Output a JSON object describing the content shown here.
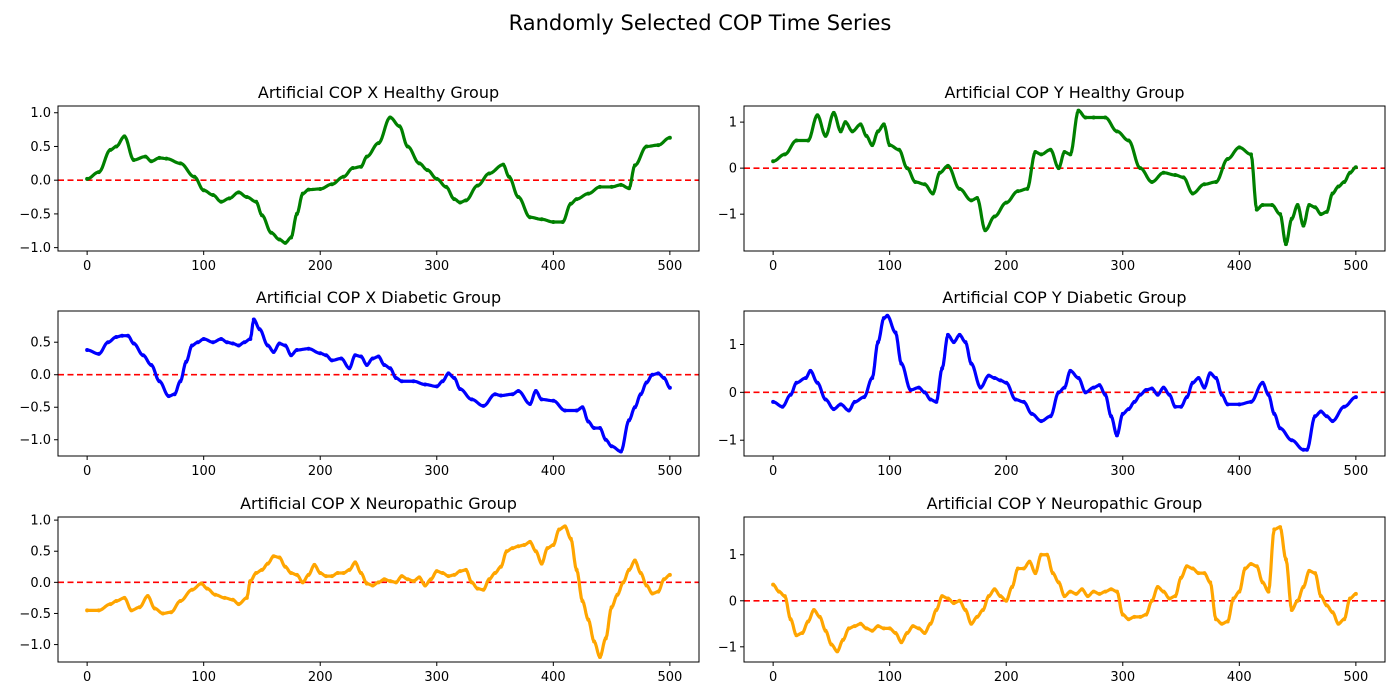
{
  "figure_title": "Randomly Selected COP Time Series",
  "colors": {
    "healthy": "#008000",
    "diabetic": "#0000ff",
    "neuropathic": "#ffa500",
    "reference": "#ff0000"
  },
  "chart_data": [
    {
      "type": "line",
      "title": "Artificial COP X Healthy Group",
      "series_color": "healthy",
      "xlim": [
        -25,
        525
      ],
      "ylim": [
        -1.05,
        1.1
      ],
      "xticks": [
        0,
        100,
        200,
        300,
        400,
        500
      ],
      "yticks": [
        -1.0,
        -0.5,
        0.0,
        0.5,
        1.0
      ],
      "ytick_labels": [
        "−1.0",
        "−0.5",
        "0.0",
        "0.5",
        "1.0"
      ],
      "reference_line": 0,
      "x": [
        0,
        10,
        20,
        25,
        32,
        40,
        50,
        55,
        62,
        68,
        80,
        92,
        100,
        108,
        115,
        122,
        130,
        137,
        145,
        150,
        158,
        165,
        170,
        175,
        180,
        185,
        190,
        200,
        210,
        220,
        228,
        235,
        240,
        250,
        260,
        268,
        275,
        285,
        292,
        300,
        308,
        315,
        320,
        325,
        335,
        345,
        357,
        362,
        370,
        380,
        390,
        400,
        408,
        415,
        420,
        430,
        440,
        450,
        458,
        465,
        470,
        480,
        490,
        500
      ],
      "y": [
        0.02,
        0.12,
        0.45,
        0.5,
        0.65,
        0.3,
        0.35,
        0.28,
        0.33,
        0.32,
        0.25,
        0.05,
        -0.15,
        -0.22,
        -0.32,
        -0.27,
        -0.18,
        -0.25,
        -0.32,
        -0.52,
        -0.78,
        -0.88,
        -0.93,
        -0.85,
        -0.5,
        -0.2,
        -0.14,
        -0.13,
        -0.06,
        0.05,
        0.18,
        0.2,
        0.35,
        0.55,
        0.93,
        0.8,
        0.5,
        0.25,
        0.15,
        0.02,
        -0.1,
        -0.28,
        -0.33,
        -0.3,
        -0.08,
        0.1,
        0.23,
        0.05,
        -0.25,
        -0.55,
        -0.58,
        -0.62,
        -0.62,
        -0.35,
        -0.28,
        -0.2,
        -0.1,
        -0.1,
        -0.07,
        -0.12,
        0.22,
        0.5,
        0.52,
        0.63
      ]
    },
    {
      "type": "line",
      "title": "Artificial COP Y Healthy Group",
      "series_color": "healthy",
      "xlim": [
        -25,
        525
      ],
      "ylim": [
        -1.8,
        1.35
      ],
      "xticks": [
        0,
        100,
        200,
        300,
        400,
        500
      ],
      "yticks": [
        -1,
        0,
        1
      ],
      "ytick_labels": [
        "−1",
        "0",
        "1"
      ],
      "reference_line": 0,
      "x": [
        0,
        10,
        20,
        30,
        38,
        45,
        52,
        58,
        62,
        68,
        75,
        80,
        85,
        90,
        95,
        100,
        108,
        115,
        122,
        130,
        137,
        143,
        150,
        160,
        170,
        175,
        182,
        190,
        200,
        210,
        218,
        225,
        230,
        238,
        245,
        250,
        255,
        262,
        268,
        275,
        285,
        295,
        305,
        315,
        325,
        335,
        345,
        352,
        360,
        370,
        380,
        390,
        400,
        410,
        415,
        420,
        428,
        435,
        440,
        445,
        450,
        455,
        460,
        465,
        470,
        475,
        480,
        485,
        490,
        495,
        500
      ],
      "y": [
        0.15,
        0.3,
        0.6,
        0.6,
        1.15,
        0.7,
        1.2,
        0.8,
        1.0,
        0.8,
        0.95,
        0.7,
        0.5,
        0.8,
        0.95,
        0.5,
        0.4,
        0.0,
        -0.3,
        -0.35,
        -0.55,
        -0.1,
        0.05,
        -0.45,
        -0.7,
        -0.65,
        -1.35,
        -1.05,
        -0.75,
        -0.5,
        -0.45,
        0.35,
        0.3,
        0.4,
        0.0,
        0.35,
        0.3,
        1.25,
        1.1,
        1.1,
        1.1,
        0.8,
        0.6,
        0.0,
        -0.3,
        -0.1,
        -0.15,
        -0.2,
        -0.55,
        -0.35,
        -0.3,
        0.2,
        0.45,
        0.3,
        -0.9,
        -0.8,
        -0.8,
        -1.0,
        -1.65,
        -1.1,
        -0.8,
        -1.25,
        -0.8,
        -0.85,
        -1.0,
        -0.95,
        -0.55,
        -0.4,
        -0.3,
        -0.1,
        0.02
      ]
    },
    {
      "type": "line",
      "title": "Artificial COP X Diabetic Group",
      "series_color": "diabetic",
      "xlim": [
        -25,
        525
      ],
      "ylim": [
        -1.25,
        0.98
      ],
      "xticks": [
        0,
        100,
        200,
        300,
        400,
        500
      ],
      "yticks": [
        -1.0,
        -0.5,
        0.0,
        0.5
      ],
      "ytick_labels": [
        "−1.0",
        "−0.5",
        "0.0",
        "0.5"
      ],
      "reference_line": 0,
      "x": [
        0,
        10,
        18,
        25,
        30,
        35,
        40,
        48,
        55,
        62,
        70,
        75,
        80,
        85,
        90,
        95,
        100,
        108,
        115,
        120,
        125,
        130,
        135,
        140,
        143,
        148,
        155,
        160,
        165,
        170,
        175,
        180,
        190,
        200,
        205,
        210,
        218,
        225,
        230,
        235,
        240,
        245,
        250,
        255,
        260,
        265,
        270,
        280,
        290,
        300,
        305,
        310,
        315,
        320,
        330,
        340,
        350,
        355,
        365,
        370,
        380,
        385,
        390,
        400,
        410,
        420,
        425,
        430,
        435,
        440,
        445,
        450,
        458,
        465,
        470,
        475,
        480,
        485,
        490,
        495,
        500
      ],
      "y": [
        0.38,
        0.32,
        0.5,
        0.58,
        0.6,
        0.6,
        0.48,
        0.3,
        0.15,
        -0.1,
        -0.33,
        -0.3,
        -0.1,
        0.2,
        0.45,
        0.5,
        0.55,
        0.5,
        0.55,
        0.5,
        0.48,
        0.45,
        0.5,
        0.55,
        0.85,
        0.7,
        0.45,
        0.35,
        0.48,
        0.45,
        0.3,
        0.38,
        0.4,
        0.33,
        0.3,
        0.22,
        0.25,
        0.1,
        0.3,
        0.28,
        0.15,
        0.25,
        0.28,
        0.15,
        0.1,
        -0.05,
        -0.1,
        -0.1,
        -0.15,
        -0.18,
        -0.1,
        0.02,
        -0.05,
        -0.22,
        -0.38,
        -0.48,
        -0.3,
        -0.32,
        -0.3,
        -0.25,
        -0.45,
        -0.25,
        -0.38,
        -0.4,
        -0.55,
        -0.55,
        -0.5,
        -0.72,
        -0.82,
        -0.82,
        -1.0,
        -1.1,
        -1.18,
        -0.7,
        -0.5,
        -0.3,
        -0.12,
        0.0,
        0.02,
        -0.05,
        -0.2
      ]
    },
    {
      "type": "line",
      "title": "Artificial COP Y Diabetic Group",
      "series_color": "diabetic",
      "xlim": [
        -25,
        525
      ],
      "ylim": [
        -1.33,
        1.7
      ],
      "xticks": [
        0,
        100,
        200,
        300,
        400,
        500
      ],
      "yticks": [
        -1,
        0,
        1
      ],
      "ytick_labels": [
        "−1",
        "0",
        "1"
      ],
      "reference_line": 0,
      "x": [
        0,
        8,
        15,
        20,
        28,
        32,
        38,
        45,
        52,
        58,
        65,
        70,
        78,
        85,
        90,
        95,
        98,
        105,
        110,
        118,
        125,
        130,
        135,
        140,
        145,
        150,
        155,
        160,
        165,
        170,
        178,
        185,
        190,
        195,
        200,
        208,
        215,
        222,
        230,
        238,
        245,
        250,
        255,
        262,
        268,
        275,
        280,
        285,
        290,
        295,
        300,
        305,
        310,
        315,
        320,
        325,
        330,
        335,
        340,
        345,
        350,
        355,
        360,
        365,
        370,
        375,
        380,
        385,
        390,
        400,
        410,
        420,
        425,
        430,
        435,
        445,
        455,
        458,
        465,
        470,
        475,
        480,
        490,
        500
      ],
      "y": [
        -0.2,
        -0.3,
        -0.05,
        0.2,
        0.3,
        0.45,
        0.2,
        -0.15,
        -0.35,
        -0.25,
        -0.38,
        -0.2,
        -0.1,
        0.3,
        1.05,
        1.55,
        1.6,
        1.25,
        0.6,
        0.05,
        0.1,
        0.0,
        -0.15,
        -0.2,
        0.5,
        1.2,
        1.05,
        1.2,
        1.05,
        0.6,
        0.1,
        0.35,
        0.3,
        0.25,
        0.2,
        -0.15,
        -0.2,
        -0.45,
        -0.6,
        -0.5,
        0.0,
        0.1,
        0.45,
        0.3,
        0.0,
        0.1,
        0.15,
        -0.05,
        -0.5,
        -0.9,
        -0.45,
        -0.35,
        -0.2,
        -0.05,
        0.05,
        0.08,
        -0.05,
        0.1,
        -0.05,
        -0.3,
        -0.3,
        -0.1,
        0.2,
        0.3,
        0.1,
        0.4,
        0.3,
        -0.05,
        -0.25,
        -0.25,
        -0.2,
        0.2,
        -0.05,
        -0.45,
        -0.75,
        -1.0,
        -1.2,
        -1.2,
        -0.5,
        -0.4,
        -0.5,
        -0.6,
        -0.3,
        -0.1
      ]
    },
    {
      "type": "line",
      "title": "Artificial COP X Neuropathic Group",
      "series_color": "neuropathic",
      "xlim": [
        -25,
        525
      ],
      "ylim": [
        -1.28,
        1.05
      ],
      "xticks": [
        0,
        100,
        200,
        300,
        400,
        500
      ],
      "yticks": [
        -1.0,
        -0.5,
        0.0,
        0.5,
        1.0
      ],
      "ytick_labels": [
        "−1.0",
        "−0.5",
        "0.0",
        "0.5",
        "1.0"
      ],
      "reference_line": 0,
      "x": [
        0,
        10,
        20,
        25,
        32,
        38,
        45,
        52,
        58,
        65,
        72,
        80,
        90,
        98,
        103,
        110,
        118,
        125,
        130,
        137,
        140,
        145,
        150,
        155,
        160,
        165,
        170,
        175,
        180,
        185,
        190,
        195,
        200,
        205,
        210,
        215,
        220,
        225,
        230,
        235,
        240,
        245,
        250,
        255,
        260,
        265,
        270,
        275,
        280,
        285,
        290,
        295,
        300,
        305,
        310,
        315,
        320,
        325,
        330,
        335,
        340,
        345,
        350,
        355,
        360,
        365,
        370,
        375,
        380,
        385,
        390,
        395,
        400,
        405,
        410,
        415,
        420,
        425,
        430,
        435,
        440,
        445,
        450,
        455,
        460,
        465,
        470,
        475,
        480,
        485,
        490,
        495,
        500
      ],
      "y": [
        -0.45,
        -0.45,
        -0.35,
        -0.3,
        -0.25,
        -0.45,
        -0.4,
        -0.22,
        -0.42,
        -0.5,
        -0.48,
        -0.3,
        -0.12,
        -0.02,
        -0.1,
        -0.2,
        -0.25,
        -0.28,
        -0.35,
        -0.25,
        0.02,
        0.15,
        0.2,
        0.3,
        0.42,
        0.4,
        0.25,
        0.15,
        0.12,
        0.0,
        0.12,
        0.28,
        0.15,
        0.1,
        0.1,
        0.15,
        0.15,
        0.2,
        0.32,
        0.15,
        -0.02,
        -0.05,
        0.0,
        0.05,
        0.02,
        0.0,
        0.1,
        0.05,
        0.02,
        0.08,
        -0.05,
        0.05,
        0.18,
        0.15,
        0.1,
        0.12,
        0.18,
        0.2,
        0.0,
        -0.1,
        -0.12,
        0.05,
        0.15,
        0.25,
        0.5,
        0.55,
        0.58,
        0.6,
        0.65,
        0.5,
        0.3,
        0.55,
        0.6,
        0.85,
        0.9,
        0.7,
        0.2,
        -0.3,
        -0.6,
        -0.95,
        -1.2,
        -0.9,
        -0.4,
        -0.2,
        0.0,
        0.2,
        0.35,
        0.15,
        -0.05,
        -0.18,
        -0.15,
        0.05,
        0.12
      ]
    },
    {
      "type": "line",
      "title": "Artificial COP Y Neuropathic Group",
      "series_color": "neuropathic",
      "xlim": [
        -25,
        525
      ],
      "ylim": [
        -1.33,
        1.82
      ],
      "xticks": [
        0,
        100,
        200,
        300,
        400,
        500
      ],
      "yticks": [
        -1,
        0,
        1
      ],
      "ytick_labels": [
        "−1",
        "0",
        "1"
      ],
      "reference_line": 0,
      "x": [
        0,
        5,
        10,
        15,
        20,
        25,
        30,
        35,
        40,
        45,
        50,
        55,
        60,
        65,
        70,
        75,
        80,
        85,
        90,
        95,
        100,
        105,
        110,
        115,
        120,
        125,
        130,
        135,
        140,
        145,
        150,
        155,
        160,
        165,
        170,
        175,
        180,
        185,
        190,
        195,
        200,
        205,
        210,
        215,
        220,
        225,
        230,
        235,
        240,
        245,
        250,
        255,
        260,
        265,
        270,
        275,
        280,
        285,
        290,
        295,
        300,
        305,
        310,
        315,
        320,
        325,
        330,
        335,
        340,
        345,
        350,
        355,
        360,
        365,
        370,
        375,
        380,
        385,
        390,
        395,
        400,
        405,
        410,
        415,
        420,
        425,
        430,
        435,
        440,
        445,
        450,
        455,
        460,
        465,
        470,
        475,
        480,
        485,
        490,
        495,
        500
      ],
      "y": [
        0.35,
        0.2,
        0.1,
        -0.4,
        -0.75,
        -0.7,
        -0.45,
        -0.2,
        -0.35,
        -0.65,
        -0.95,
        -1.1,
        -0.85,
        -0.6,
        -0.55,
        -0.5,
        -0.6,
        -0.65,
        -0.55,
        -0.6,
        -0.6,
        -0.7,
        -0.9,
        -0.7,
        -0.55,
        -0.6,
        -0.7,
        -0.5,
        -0.2,
        0.1,
        0.05,
        -0.05,
        0.0,
        -0.2,
        -0.5,
        -0.35,
        -0.2,
        0.1,
        0.25,
        0.1,
        0.0,
        0.3,
        0.7,
        0.7,
        0.85,
        0.6,
        1.0,
        1.0,
        0.6,
        0.4,
        0.1,
        0.2,
        0.15,
        0.25,
        0.1,
        0.2,
        0.15,
        0.2,
        0.25,
        0.2,
        -0.3,
        -0.4,
        -0.35,
        -0.35,
        -0.3,
        0.0,
        0.3,
        0.2,
        0.05,
        0.1,
        0.5,
        0.75,
        0.7,
        0.6,
        0.6,
        0.4,
        -0.4,
        -0.5,
        -0.45,
        0.05,
        0.2,
        0.7,
        0.8,
        0.75,
        0.4,
        0.2,
        1.55,
        1.6,
        0.9,
        -0.2,
        0.0,
        0.3,
        0.65,
        0.6,
        0.1,
        -0.1,
        -0.25,
        -0.5,
        -0.4,
        0.05,
        0.15
      ]
    }
  ]
}
